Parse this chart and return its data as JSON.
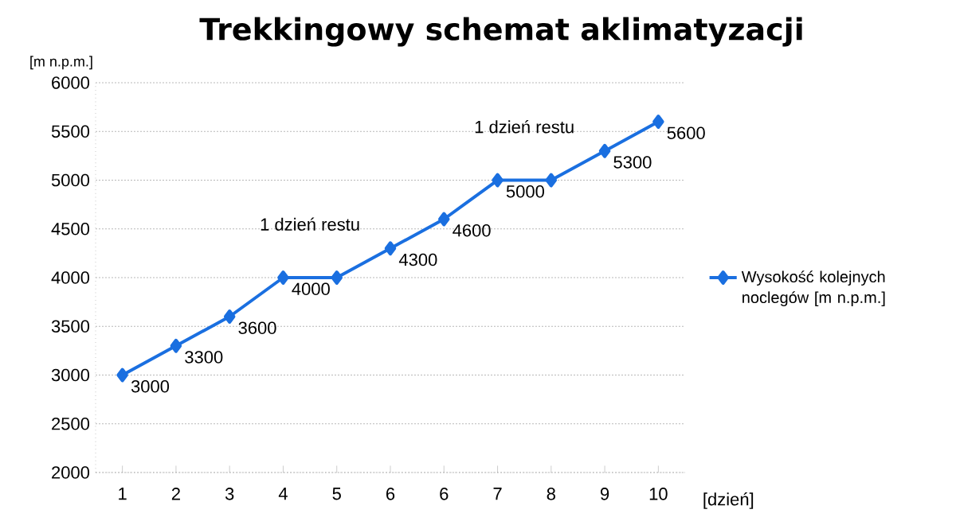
{
  "chart_data": {
    "type": "line",
    "title": "Trekkingowy schemat aklimatyzacji",
    "xlabel": "[dzień]",
    "ylabel": "[m n.p.m.]",
    "categories": [
      "1",
      "2",
      "3",
      "4",
      "5",
      "6",
      "6",
      "7",
      "8",
      "9",
      "10"
    ],
    "series": [
      {
        "name": "Wysokość kolejnych noclegów [m n.p.m.]",
        "color": "#1a6fe0",
        "values": [
          3000,
          3300,
          3600,
          4000,
          4000,
          4300,
          4600,
          5000,
          5000,
          5300,
          5600
        ],
        "value_labels": [
          "3000",
          "3300",
          "3600",
          "4000",
          null,
          "4300",
          "4600",
          "5000",
          null,
          "5300",
          "5600"
        ]
      }
    ],
    "annotations": [
      {
        "text": "1 dzień  restu",
        "x": "5",
        "y": 4000
      },
      {
        "text": "1 dzień  restu",
        "x": "8",
        "y": 5000
      }
    ],
    "ylim": [
      2000,
      6000
    ],
    "yticks": [
      2000,
      2500,
      3000,
      3500,
      4000,
      4500,
      5000,
      5500,
      6000
    ],
    "grid": "y",
    "legend": "right",
    "marker": "diamond",
    "line_style": "solid"
  }
}
